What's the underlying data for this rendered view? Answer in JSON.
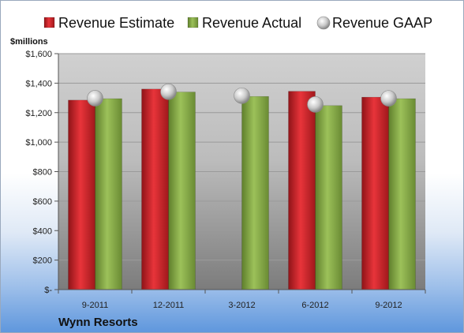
{
  "chart_data": {
    "type": "bar",
    "title": "",
    "ylabel": "$millions",
    "company": "Wynn Resorts",
    "categories": [
      "9-2011",
      "12-2011",
      "3-2012",
      "6-2012",
      "9-2012"
    ],
    "ylim": [
      0,
      1600
    ],
    "yticks": [
      {
        "value": 0,
        "label": "$-"
      },
      {
        "value": 200,
        "label": "$200"
      },
      {
        "value": 400,
        "label": "$400"
      },
      {
        "value": 600,
        "label": "$600"
      },
      {
        "value": 800,
        "label": "$800"
      },
      {
        "value": 1000,
        "label": "$1,000"
      },
      {
        "value": 1200,
        "label": "$1,200"
      },
      {
        "value": 1400,
        "label": "$1,400"
      },
      {
        "value": 1600,
        "label": "$1,600"
      }
    ],
    "series": [
      {
        "name": "Revenue Estimate",
        "type": "bar",
        "color": "#d7262b",
        "values": [
          1285,
          1360,
          null,
          1345,
          1305
        ]
      },
      {
        "name": "Revenue Actual",
        "type": "bar",
        "color": "#8bb04a",
        "values": [
          1295,
          1340,
          1310,
          1248,
          1295
        ]
      },
      {
        "name": "Revenue GAAP",
        "type": "marker",
        "color": "#c8c8c8",
        "values": [
          1298,
          1342,
          1315,
          1256,
          1297
        ]
      }
    ],
    "legend_position": "top",
    "grid": true
  }
}
